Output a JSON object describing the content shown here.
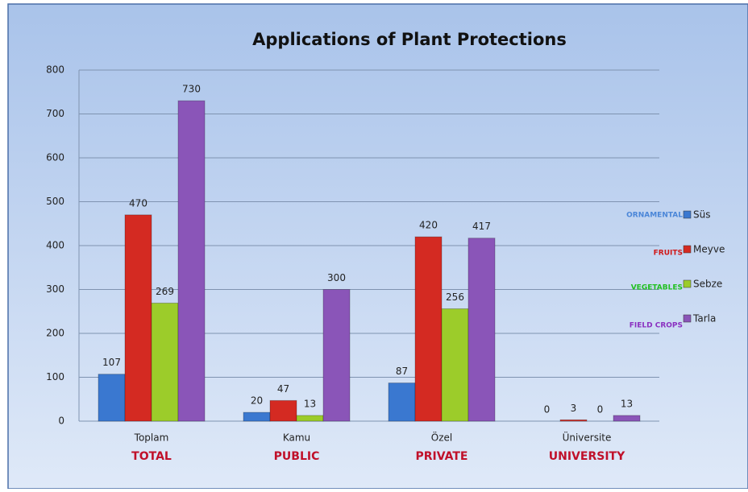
{
  "chart_data": {
    "type": "bar",
    "title": "Applications of Plant Protections",
    "categories": [
      "Toplam",
      "Kamu",
      "Özel",
      "Üniversite"
    ],
    "category_annotations": [
      "TOTAL",
      "PUBLIC",
      "PRIVATE",
      "UNIVERSITY"
    ],
    "category_annotation_color": "#c0102a",
    "series": [
      {
        "name": "Süs",
        "annotation": "ORNAMENTAL",
        "annotation_color": "#4a86d8",
        "color": "#3a78d0",
        "values": [
          107,
          20,
          87,
          0
        ]
      },
      {
        "name": "Meyve",
        "annotation": "FRUITS",
        "annotation_color": "#d01818",
        "color": "#d42a22",
        "values": [
          470,
          47,
          420,
          3
        ]
      },
      {
        "name": "Sebze",
        "annotation": "VEGETABLES",
        "annotation_color": "#20c020",
        "color": "#9ccc2a",
        "values": [
          269,
          13,
          256,
          0
        ]
      },
      {
        "name": "Tarla",
        "annotation": "FIELD CROPS",
        "annotation_color": "#8a30c0",
        "color": "#8a55b8",
        "values": [
          730,
          300,
          417,
          13
        ]
      }
    ],
    "ylim": [
      0,
      800
    ],
    "yticks": [
      0,
      100,
      200,
      300,
      400,
      500,
      600,
      700,
      800
    ],
    "grid": true,
    "legend": "right"
  }
}
